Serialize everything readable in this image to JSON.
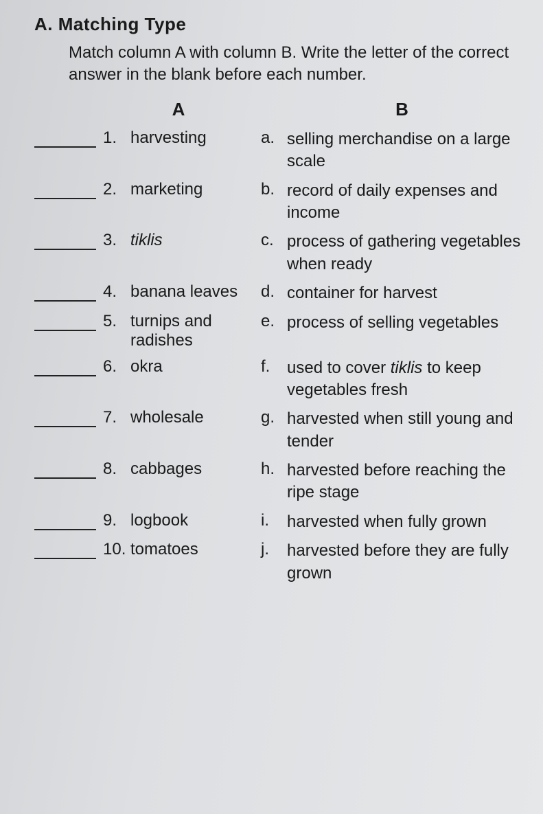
{
  "section_label": "A.  Matching Type",
  "instructions": "Match column A with column B. Write the letter of the correct answer in the blank before each number.",
  "header_a": "A",
  "header_b": "B",
  "rows": [
    {
      "num": "1.",
      "term": "harvesting",
      "term_italic": false,
      "letter": "a.",
      "desc": "selling merchandise on a large scale"
    },
    {
      "num": "2.",
      "term": "marketing",
      "term_italic": false,
      "letter": "b.",
      "desc": "record of daily expenses and income"
    },
    {
      "num": "3.",
      "term": "tiklis",
      "term_italic": true,
      "letter": "c.",
      "desc": "process of gathering vegetables when ready"
    },
    {
      "num": "4.",
      "term": "banana leaves",
      "term_italic": false,
      "letter": "d.",
      "desc": "container for harvest"
    },
    {
      "num": "5.",
      "term": "turnips and radishes",
      "term_italic": false,
      "letter": "e.",
      "desc": "process of selling vegetables"
    },
    {
      "num": "6.",
      "term": "okra",
      "term_italic": false,
      "letter": "f.",
      "desc": "used to cover tiklis to keep vegetables fresh",
      "desc_italic_word": "tiklis"
    },
    {
      "num": "7.",
      "term": "wholesale",
      "term_italic": false,
      "letter": "g.",
      "desc": "harvested when still young and tender"
    },
    {
      "num": "8.",
      "term": "cabbages",
      "term_italic": false,
      "letter": "h.",
      "desc": "harvested before reaching the ripe stage"
    },
    {
      "num": "9.",
      "term": "logbook",
      "term_italic": false,
      "letter": "i.",
      "desc": "harvested when fully grown"
    },
    {
      "num": "10.",
      "term": "tomatoes",
      "term_italic": false,
      "letter": "j.",
      "desc": "harvested before they are fully grown"
    }
  ]
}
